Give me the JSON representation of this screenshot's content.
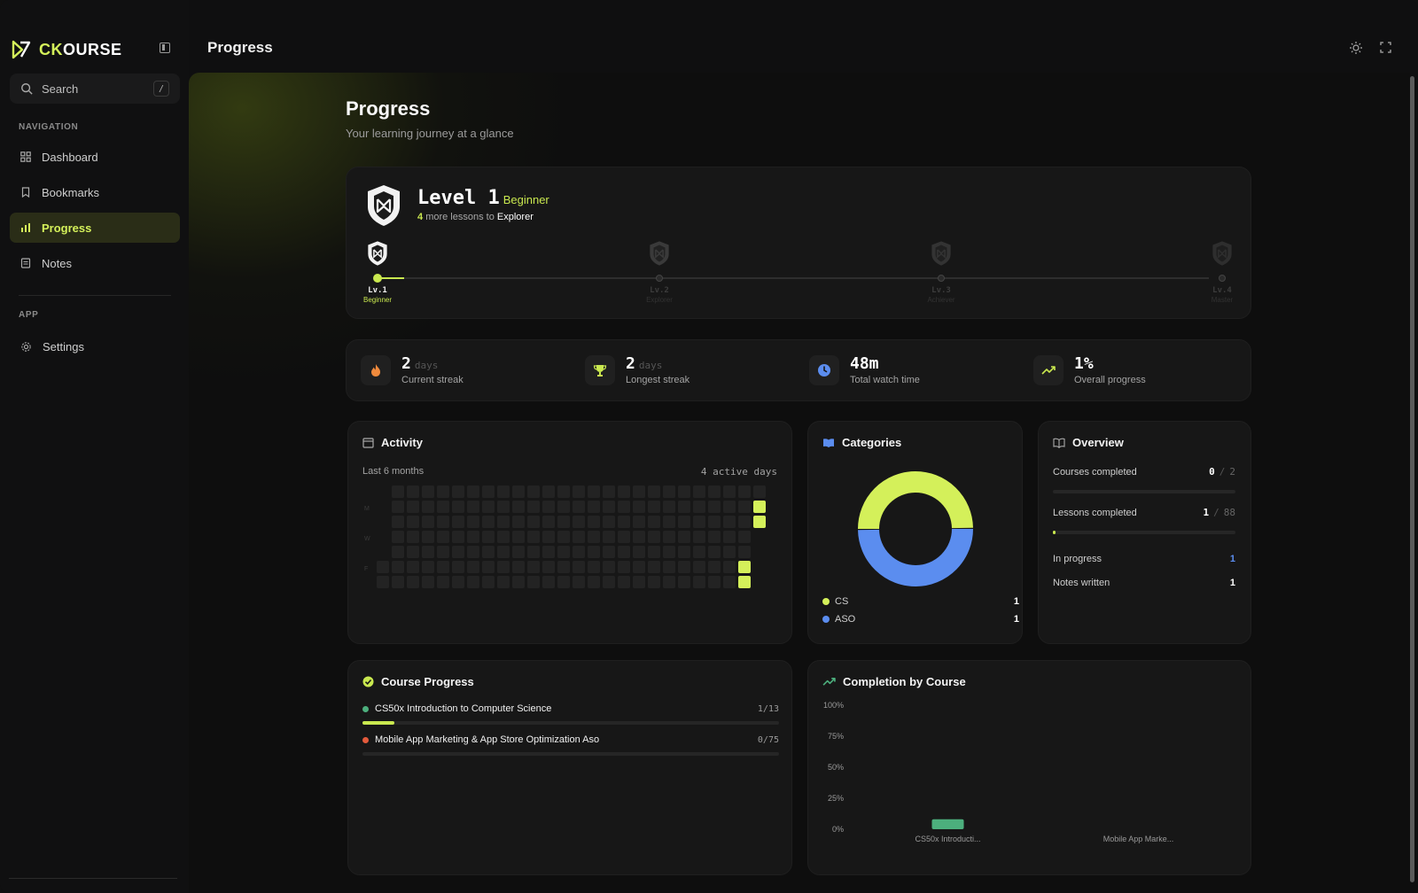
{
  "app": {
    "logo_ck": "CK",
    "logo_rest": "OURSE"
  },
  "sidebar": {
    "search_label": "Search",
    "search_shortcut": "/",
    "nav_label": "NAVIGATION",
    "items": [
      {
        "label": "Dashboard",
        "icon": "grid-icon"
      },
      {
        "label": "Bookmarks",
        "icon": "bookmark-icon"
      },
      {
        "label": "Progress",
        "icon": "bar-chart-icon",
        "active": true
      },
      {
        "label": "Notes",
        "icon": "note-icon"
      }
    ],
    "app_label": "APP",
    "settings_label": "Settings"
  },
  "header": {
    "title": "Progress"
  },
  "page": {
    "title": "Progress",
    "subtitle": "Your learning journey at a glance"
  },
  "level": {
    "title": "Level 1",
    "tier": "Beginner",
    "remaining": "4",
    "remaining_text": "more lessons to",
    "next_tier": "Explorer",
    "milestones": [
      {
        "level": "Lv.1",
        "name": "Beginner",
        "active": true
      },
      {
        "level": "Lv.2",
        "name": "Explorer",
        "active": false
      },
      {
        "level": "Lv.3",
        "name": "Achiever",
        "active": false
      },
      {
        "level": "Lv.4",
        "name": "Master",
        "active": false
      }
    ],
    "progress_fraction": 0.03
  },
  "stats": [
    {
      "value": "2",
      "unit": "days",
      "label": "Current streak",
      "icon": "flame-icon",
      "color": "#f08a3c"
    },
    {
      "value": "2",
      "unit": "days",
      "label": "Longest streak",
      "icon": "trophy-icon",
      "color": "#c9e84f"
    },
    {
      "value": "48m",
      "unit": "",
      "label": "Total watch time",
      "icon": "clock-icon",
      "color": "#5b8def"
    },
    {
      "value": "1%",
      "unit": "",
      "label": "Overall progress",
      "icon": "trend-up-icon",
      "color": "#c9e84f"
    }
  ],
  "activity": {
    "title": "Activity",
    "range": "Last 6 months",
    "active_days": "4 active days",
    "day_labels": [
      "M",
      "W",
      "F"
    ]
  },
  "categories": {
    "title": "Categories",
    "items": [
      {
        "name": "CS",
        "count": "1",
        "color": "#d4f05a"
      },
      {
        "name": "ASO",
        "count": "1",
        "color": "#5b8def"
      }
    ]
  },
  "overview": {
    "title": "Overview",
    "courses_label": "Courses completed",
    "courses_done": "0",
    "courses_total": "2",
    "lessons_label": "Lessons completed",
    "lessons_done": "1",
    "lessons_total": "88",
    "in_progress_label": "In progress",
    "in_progress": "1",
    "notes_label": "Notes written",
    "notes": "1"
  },
  "course_progress": {
    "title": "Course Progress",
    "courses": [
      {
        "name": "CS50x Introduction to Computer Science",
        "fraction": "1/13",
        "color": "#4caf7d",
        "progress": 0.077
      },
      {
        "name": "Mobile App Marketing & App Store Optimization Aso",
        "fraction": "0/75",
        "color": "#e35a3c",
        "progress": 0
      }
    ]
  },
  "completion": {
    "title": "Completion by Course"
  },
  "chart_data": {
    "type": "bar",
    "title": "Completion by Course",
    "categories": [
      "CS50x Introducti...",
      "Mobile App Marke..."
    ],
    "values": [
      8,
      0
    ],
    "y_ticks": [
      "100%",
      "75%",
      "50%",
      "25%",
      "0%"
    ],
    "ylim": [
      0,
      100
    ],
    "bar_color": "#4caf7d",
    "grid": false
  }
}
